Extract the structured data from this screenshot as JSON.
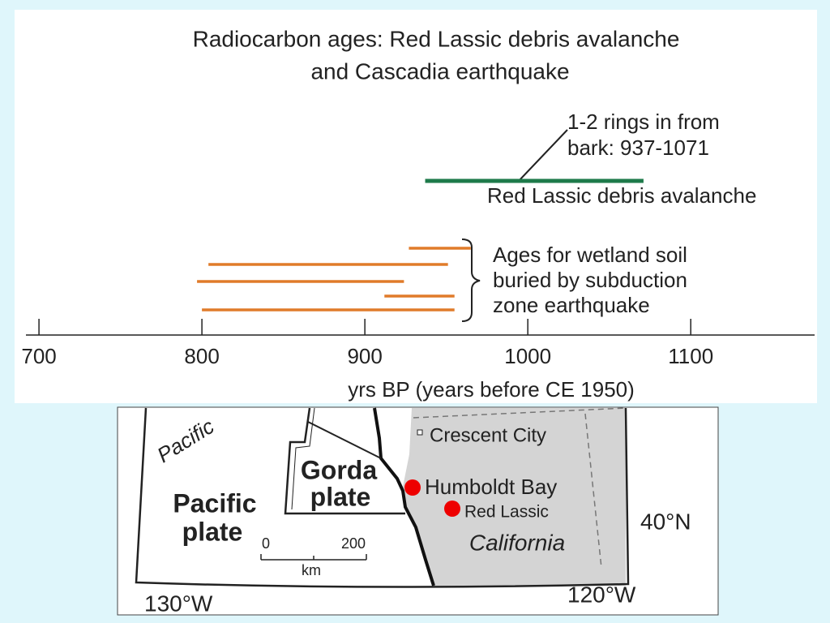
{
  "chart_data": {
    "type": "range",
    "title": [
      "Radiocarbon ages: Red Lassic debris avalanche",
      "and Cascadia earthquake"
    ],
    "x_label": "yrs BP (years before CE 1950)",
    "xlim": [
      692,
      1176
    ],
    "xticks": [
      700,
      800,
      900,
      1000,
      1100
    ],
    "series": [
      {
        "name": "Red Lassic debris avalanche",
        "color": "#1e7a4a",
        "values": [
          [
            937,
            1071
          ]
        ]
      },
      {
        "name": [
          "Ages for wetland soil",
          "buried by subduction",
          "zone earthquake"
        ],
        "color": "#e07b2a",
        "values": [
          [
            927,
            965
          ],
          [
            804,
            951
          ],
          [
            797,
            924
          ],
          [
            912,
            955
          ],
          [
            800,
            955
          ]
        ]
      }
    ],
    "annotation": [
      "1-2 rings in from",
      "bark: 937-1071"
    ]
  },
  "map": {
    "labels": {
      "pacific_arc": "Pacific",
      "pacific_plate": [
        "Pacific",
        "plate"
      ],
      "gorda_plate": [
        "Gorda",
        "plate"
      ],
      "crescent_city": "Crescent City",
      "humboldt_bay": "Humboldt Bay",
      "red_lassic": "Red Lassic",
      "california": "California",
      "lat": "40°N",
      "lon_east": "120°W",
      "lon_west": "130°W"
    },
    "scale": {
      "start": "0",
      "end": "200",
      "unit": "km"
    }
  }
}
